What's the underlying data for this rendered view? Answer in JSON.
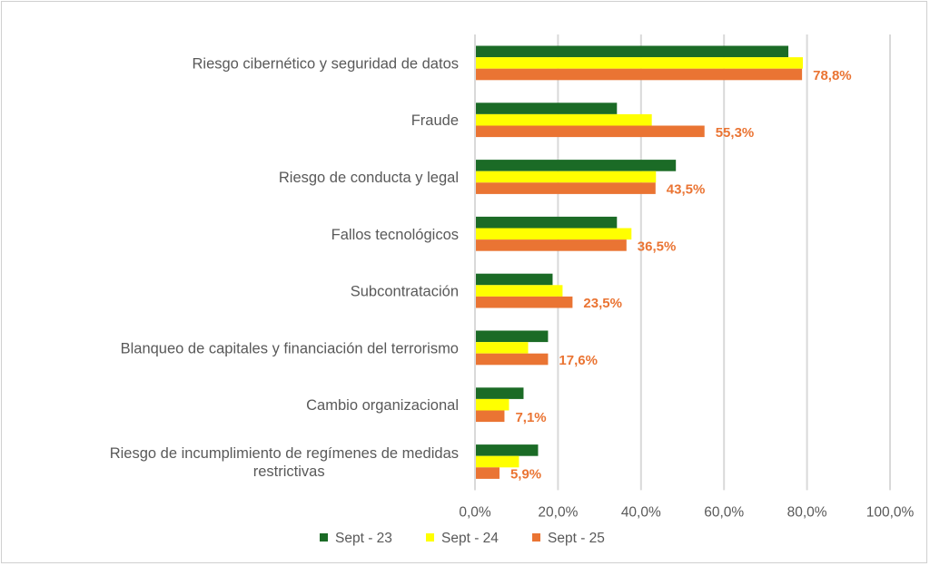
{
  "chart_data": {
    "type": "bar",
    "orientation": "horizontal",
    "title": "",
    "xlabel": "",
    "ylabel": "",
    "categories": [
      "Riesgo cibernético y seguridad de datos",
      "Fraude",
      "Riesgo de conducta y legal",
      "Fallos tecnológicos",
      "Subcontratación",
      "Blanqueo de capitales y financiación del terrorismo",
      "Cambio organizacional",
      "Riesgo de incumplimiento de regímenes de medidas restrictivas"
    ],
    "category_lines": [
      [
        "Riesgo cibernético y seguridad de datos"
      ],
      [
        "Fraude"
      ],
      [
        "Riesgo de conducta y legal"
      ],
      [
        "Fallos tecnológicos"
      ],
      [
        "Subcontratación"
      ],
      [
        "Blanqueo de capitales y financiación del terrorismo"
      ],
      [
        "Cambio organizacional"
      ],
      [
        "Riesgo de incumplimiento de regímenes de medidas",
        "restrictivas"
      ]
    ],
    "series": [
      {
        "name": "Sept - 23",
        "color": "#1b6b26",
        "values": [
          75.5,
          34.2,
          48.4,
          34.2,
          18.7,
          17.6,
          11.7,
          15.2
        ]
      },
      {
        "name": "Sept - 24",
        "color": "#ffff00",
        "values": [
          79.0,
          42.6,
          43.6,
          37.7,
          21.1,
          12.8,
          8.2,
          10.6
        ]
      },
      {
        "name": "Sept - 25",
        "color": "#ea7433",
        "values": [
          78.8,
          55.3,
          43.5,
          36.5,
          23.5,
          17.6,
          7.1,
          5.9
        ]
      }
    ],
    "data_labels": {
      "series": "Sept - 25",
      "labels": [
        "78,8%",
        "55,3%",
        "43,5%",
        "36,5%",
        "23,5%",
        "17,6%",
        "7,1%",
        "5,9%"
      ],
      "color": "#ea7433"
    },
    "xlim": [
      0,
      100
    ],
    "xticks": [
      0,
      20,
      40,
      60,
      80,
      100
    ],
    "xtick_labels": [
      "0,0%",
      "20,0%",
      "40,0%",
      "60,0%",
      "80,0%",
      "100,0%"
    ],
    "grid": true,
    "legend": "bottom"
  }
}
